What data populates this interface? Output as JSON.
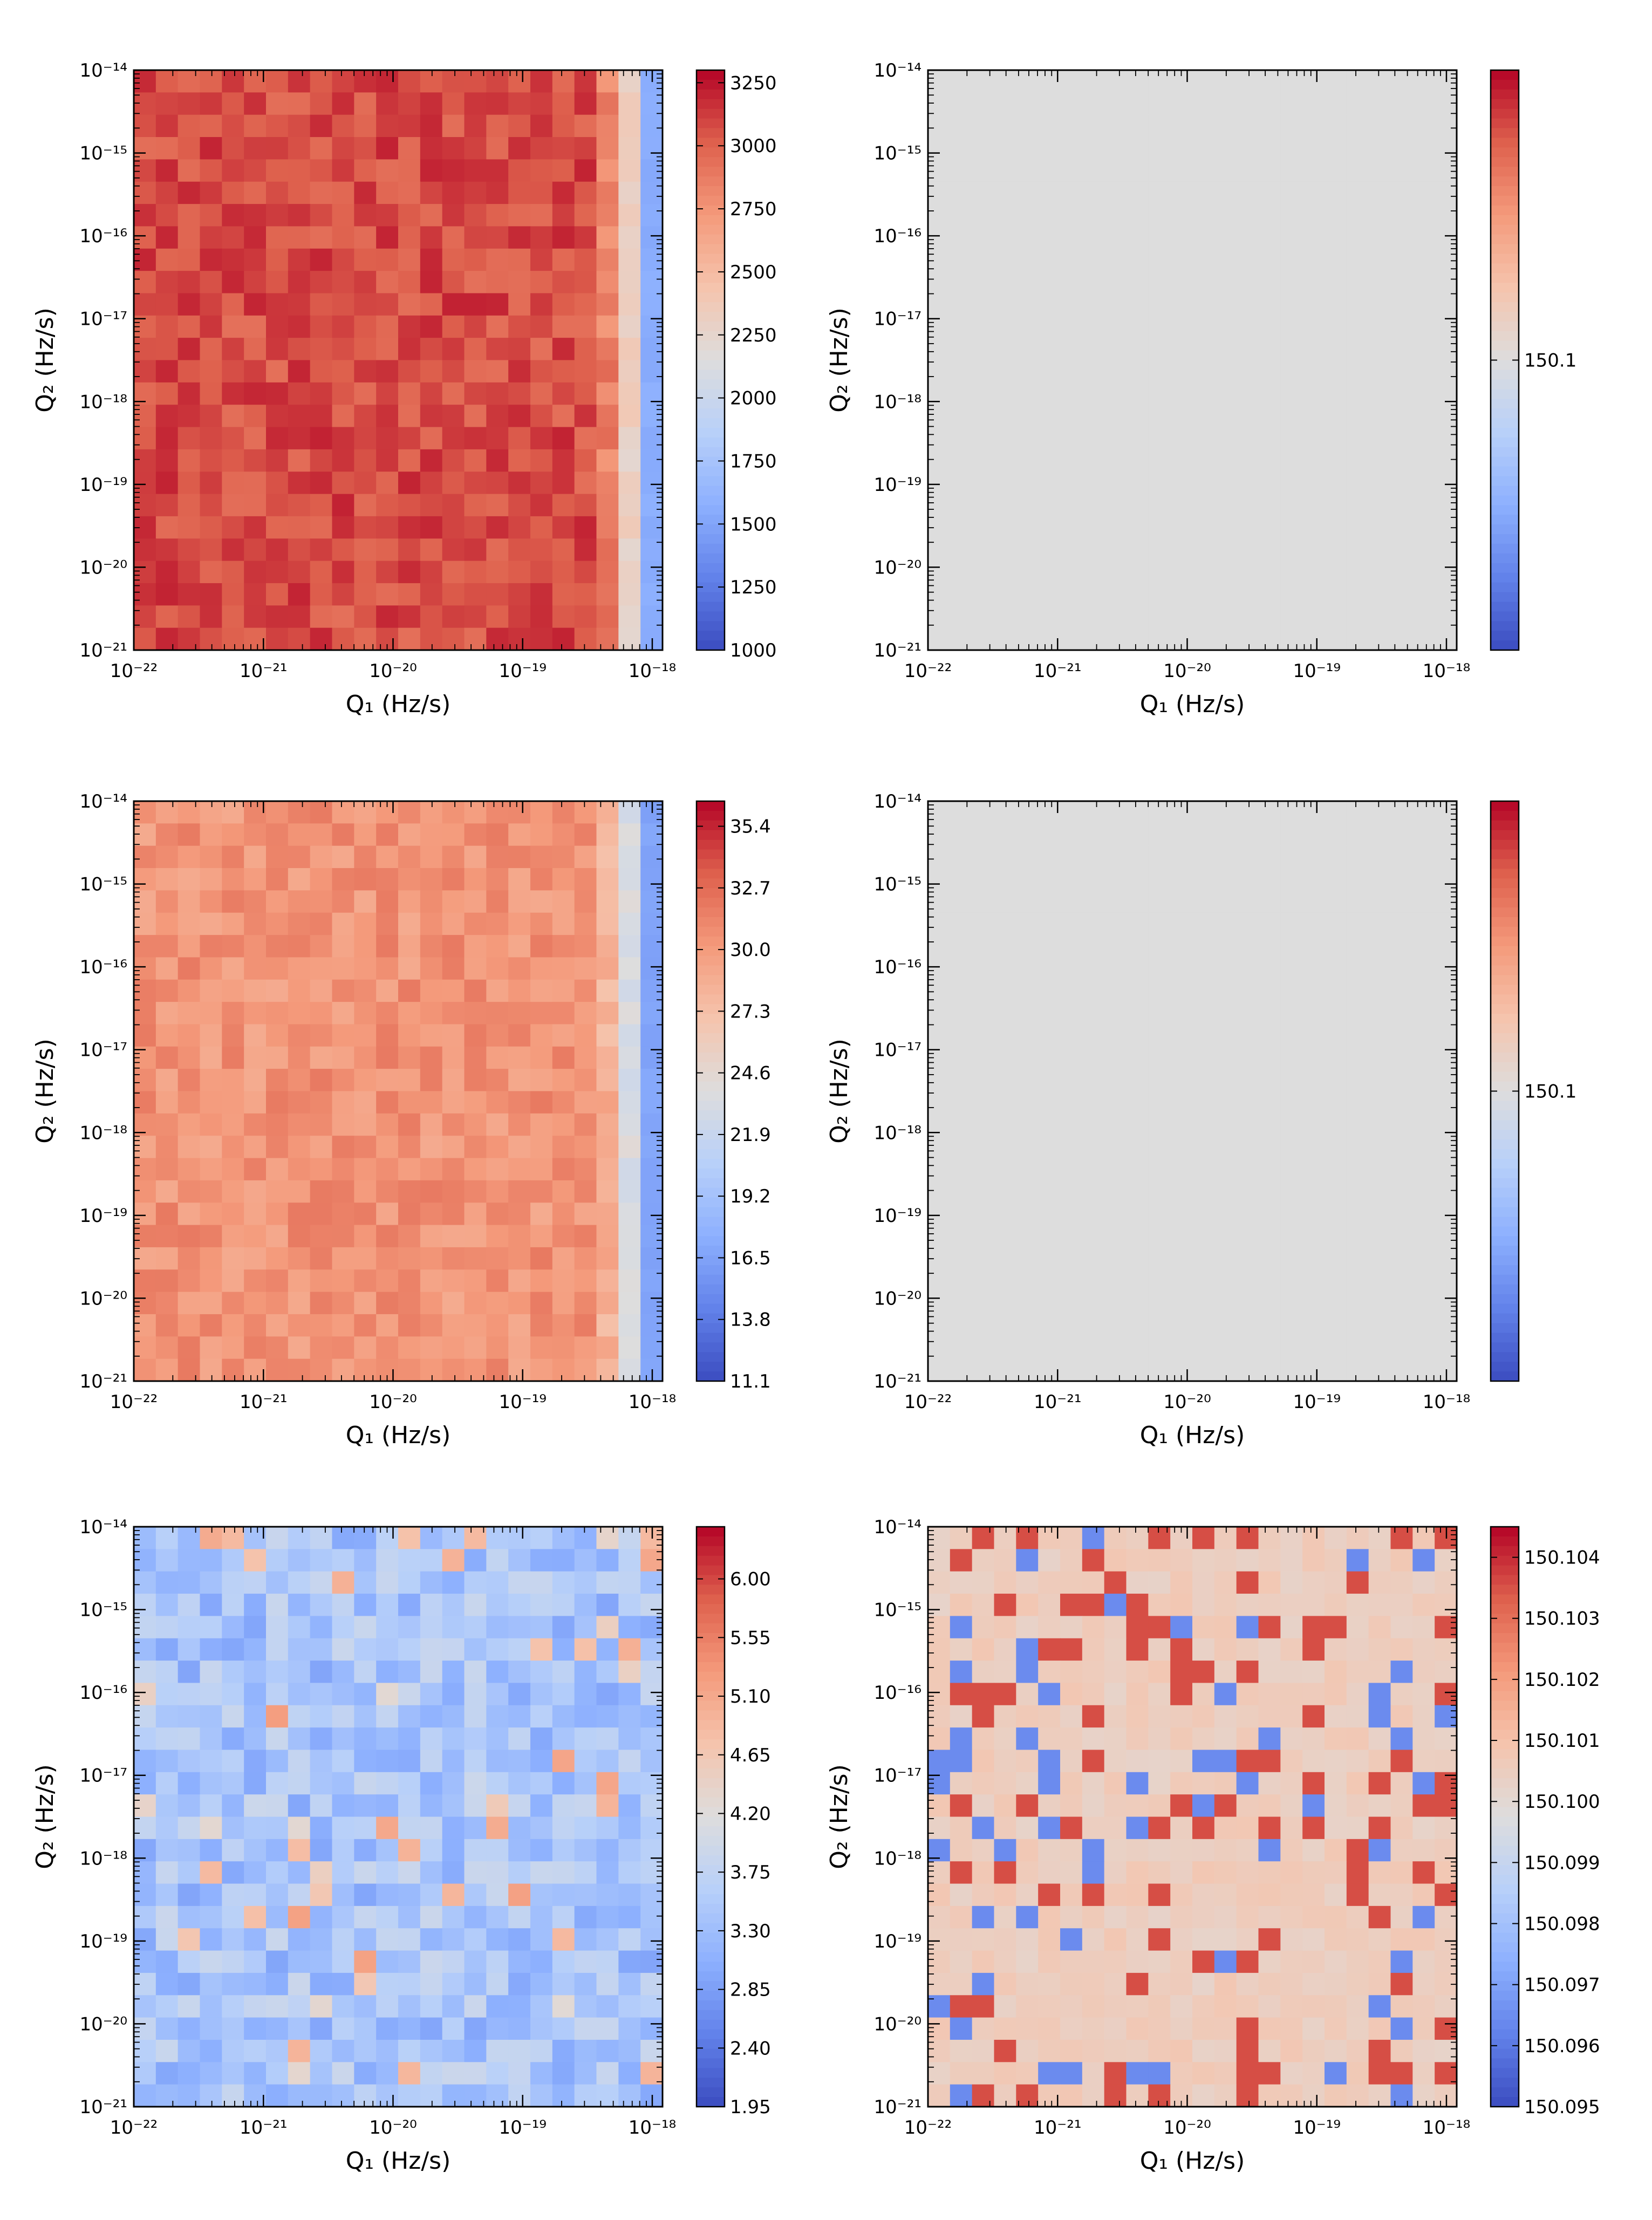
{
  "chart_data": [
    {
      "type": "heatmap",
      "title": "",
      "xlabel": "Q₁  (Hz/s)",
      "ylabel": "Q₂  (Hz/s)",
      "x_scale": "log",
      "y_scale": "log",
      "xlim": [
        1e-22,
        1.2e-18
      ],
      "ylim": [
        1e-21,
        1e-14
      ],
      "x_ticks": [
        "10⁻²²",
        "10⁻²¹",
        "10⁻²⁰",
        "10⁻¹⁹",
        "10⁻¹⁸"
      ],
      "y_ticks": [
        "10⁻²¹",
        "10⁻²⁰",
        "10⁻¹⁹",
        "10⁻¹⁸",
        "10⁻¹⁷",
        "10⁻¹⁶",
        "10⁻¹⁵",
        "10⁻¹⁴"
      ],
      "colormap": "coolwarm",
      "colorbar_range": [
        1000,
        3300
      ],
      "colorbar_ticks": [
        "1000",
        "1250",
        "1500",
        "1750",
        "2000",
        "2250",
        "2500",
        "2750",
        "3000",
        "3250"
      ],
      "pattern": "edge",
      "base_level": 0.9,
      "edge_level": 0.05,
      "seed": 11
    },
    {
      "type": "heatmap",
      "title": "",
      "xlabel": "Q₁  (Hz/s)",
      "ylabel": "Q₂  (Hz/s)",
      "x_scale": "log",
      "y_scale": "log",
      "xlim": [
        1e-22,
        1.2e-18
      ],
      "ylim": [
        1e-21,
        1e-14
      ],
      "x_ticks": [
        "10⁻²²",
        "10⁻²¹",
        "10⁻²⁰",
        "10⁻¹⁹",
        "10⁻¹⁸"
      ],
      "y_ticks": [
        "10⁻²¹",
        "10⁻²⁰",
        "10⁻¹⁹",
        "10⁻¹⁸",
        "10⁻¹⁷",
        "10⁻¹⁶",
        "10⁻¹⁵",
        "10⁻¹⁴"
      ],
      "colormap": "coolwarm",
      "colorbar_range": [
        150.09,
        150.11
      ],
      "colorbar_ticks": [
        "150.1"
      ],
      "pattern": "flat",
      "base_level": 0.5,
      "seed": 21
    },
    {
      "type": "heatmap",
      "title": "",
      "xlabel": "Q₁  (Hz/s)",
      "ylabel": "Q₂  (Hz/s)",
      "x_scale": "log",
      "y_scale": "log",
      "xlim": [
        1e-22,
        1.2e-18
      ],
      "ylim": [
        1e-21,
        1e-14
      ],
      "x_ticks": [
        "10⁻²²",
        "10⁻²¹",
        "10⁻²⁰",
        "10⁻¹⁹",
        "10⁻¹⁸"
      ],
      "y_ticks": [
        "10⁻²¹",
        "10⁻²⁰",
        "10⁻¹⁹",
        "10⁻¹⁸",
        "10⁻¹⁷",
        "10⁻¹⁶",
        "10⁻¹⁵",
        "10⁻¹⁴"
      ],
      "colormap": "coolwarm",
      "colorbar_range": [
        11.1,
        36.5
      ],
      "colorbar_ticks": [
        "11.1",
        "13.8",
        "16.5",
        "19.2",
        "21.9",
        "24.6",
        "27.3",
        "30.0",
        "32.7",
        "35.4"
      ],
      "pattern": "edge",
      "base_level": 0.76,
      "edge_level": 0.06,
      "seed": 31
    },
    {
      "type": "heatmap",
      "title": "",
      "xlabel": "Q₁  (Hz/s)",
      "ylabel": "Q₂  (Hz/s)",
      "x_scale": "log",
      "y_scale": "log",
      "xlim": [
        1e-22,
        1.2e-18
      ],
      "ylim": [
        1e-21,
        1e-14
      ],
      "x_ticks": [
        "10⁻²²",
        "10⁻²¹",
        "10⁻²⁰",
        "10⁻¹⁹",
        "10⁻¹⁸"
      ],
      "y_ticks": [
        "10⁻²¹",
        "10⁻²⁰",
        "10⁻¹⁹",
        "10⁻¹⁸",
        "10⁻¹⁷",
        "10⁻¹⁶",
        "10⁻¹⁵",
        "10⁻¹⁴"
      ],
      "colormap": "coolwarm",
      "colorbar_range": [
        150.09,
        150.11
      ],
      "colorbar_ticks": [
        "150.1"
      ],
      "pattern": "flat",
      "base_level": 0.5,
      "seed": 41
    },
    {
      "type": "heatmap",
      "title": "",
      "xlabel": "Q₁  (Hz/s)",
      "ylabel": "Q₂  (Hz/s)",
      "x_scale": "log",
      "y_scale": "log",
      "xlim": [
        1e-22,
        1.2e-18
      ],
      "ylim": [
        1e-21,
        1e-14
      ],
      "x_ticks": [
        "10⁻²²",
        "10⁻²¹",
        "10⁻²⁰",
        "10⁻¹⁹",
        "10⁻¹⁸"
      ],
      "y_ticks": [
        "10⁻²¹",
        "10⁻²⁰",
        "10⁻¹⁹",
        "10⁻¹⁸",
        "10⁻¹⁷",
        "10⁻¹⁶",
        "10⁻¹⁵",
        "10⁻¹⁴"
      ],
      "colormap": "coolwarm",
      "colorbar_range": [
        1.95,
        6.4
      ],
      "colorbar_ticks": [
        "1.95",
        "2.40",
        "2.85",
        "3.30",
        "3.75",
        "4.20",
        "4.65",
        "5.10",
        "5.55",
        "6.00"
      ],
      "pattern": "noise",
      "base_level": 0.33,
      "seed": 51
    },
    {
      "type": "heatmap",
      "title": "",
      "xlabel": "Q₁  (Hz/s)",
      "ylabel": "Q₂  (Hz/s)",
      "x_scale": "log",
      "y_scale": "log",
      "xlim": [
        1e-22,
        1.2e-18
      ],
      "ylim": [
        1e-21,
        1e-14
      ],
      "x_ticks": [
        "10⁻²²",
        "10⁻²¹",
        "10⁻²⁰",
        "10⁻¹⁹",
        "10⁻¹⁸"
      ],
      "y_ticks": [
        "10⁻²¹",
        "10⁻²⁰",
        "10⁻¹⁹",
        "10⁻¹⁸",
        "10⁻¹⁷",
        "10⁻¹⁶",
        "10⁻¹⁵",
        "10⁻¹⁴"
      ],
      "colormap": "coolwarm",
      "colorbar_range": [
        150.095,
        150.1045
      ],
      "colorbar_ticks": [
        "150.095",
        "150.096",
        "150.097",
        "150.098",
        "150.099",
        "150.100",
        "150.101",
        "150.102",
        "150.103",
        "150.104"
      ],
      "pattern": "noise2",
      "base_level": 0.58,
      "seed": 61
    }
  ]
}
